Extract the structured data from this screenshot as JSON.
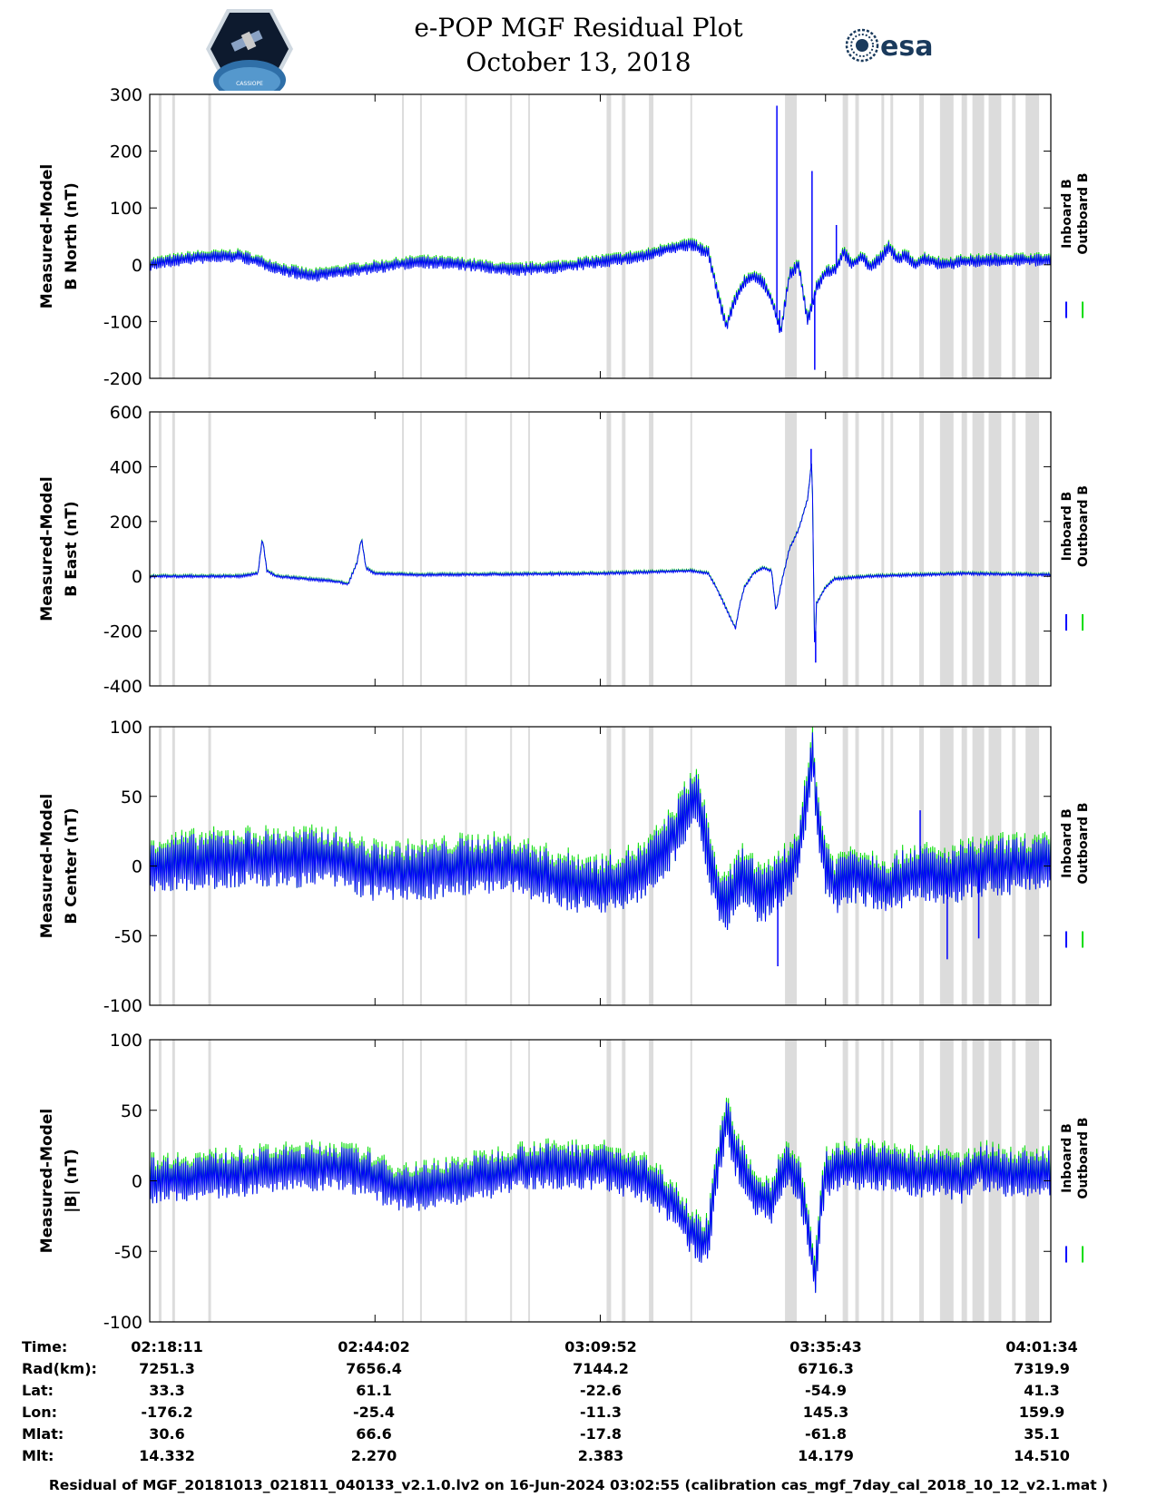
{
  "header": {
    "title_line1": "e-POP MGF Residual Plot",
    "title_line2": "October 13, 2018",
    "logo_left_text": "CASSIOPE",
    "logo_right_text": "esa"
  },
  "legend": {
    "inboard": "Inboard B",
    "outboard": "Outboard B"
  },
  "colors": {
    "inboard": "#0000ff",
    "outboard": "#00dd00",
    "gap": "#dcdcdc"
  },
  "chart_data": [
    {
      "type": "line",
      "ylabel": "Measured-Model",
      "ylabel2": "B North (nT)",
      "ylim": [
        -200,
        300
      ],
      "yticks": [
        "300",
        "200",
        "100",
        "0",
        "-100",
        "-200"
      ],
      "series": [
        {
          "name": "Inboard B"
        },
        {
          "name": "Outboard B"
        }
      ],
      "profile": [
        [
          0,
          0
        ],
        [
          2,
          5
        ],
        [
          5,
          12
        ],
        [
          10,
          15
        ],
        [
          15,
          -10
        ],
        [
          18,
          -20
        ],
        [
          20,
          -15
        ],
        [
          25,
          -5
        ],
        [
          30,
          5
        ],
        [
          35,
          0
        ],
        [
          40,
          -10
        ],
        [
          45,
          -5
        ],
        [
          50,
          5
        ],
        [
          55,
          15
        ],
        [
          58,
          30
        ],
        [
          60,
          35
        ],
        [
          62,
          20
        ],
        [
          63,
          -50
        ],
        [
          64,
          -110
        ],
        [
          65,
          -60
        ],
        [
          66,
          -30
        ],
        [
          67,
          -20
        ],
        [
          68,
          -30
        ],
        [
          69,
          -60
        ],
        [
          70,
          -120
        ],
        [
          71,
          -20
        ],
        [
          72,
          0
        ],
        [
          73,
          -100
        ],
        [
          74,
          -40
        ],
        [
          75,
          -15
        ],
        [
          76,
          -10
        ],
        [
          77,
          20
        ],
        [
          78,
          0
        ],
        [
          79,
          15
        ],
        [
          80,
          -5
        ],
        [
          81,
          10
        ],
        [
          82,
          30
        ],
        [
          83,
          10
        ],
        [
          84,
          15
        ],
        [
          85,
          0
        ],
        [
          86,
          10
        ],
        [
          87,
          5
        ],
        [
          88,
          0
        ],
        [
          90,
          5
        ],
        [
          95,
          8
        ],
        [
          100,
          8
        ]
      ],
      "noise": 8,
      "spikes": [
        {
          "x": 69.6,
          "y": 280
        },
        {
          "x": 69.9,
          "y": -80
        },
        {
          "x": 73.5,
          "y": 165
        },
        {
          "x": 73.8,
          "y": -185
        },
        {
          "x": 76.2,
          "y": 70
        }
      ]
    },
    {
      "type": "line",
      "ylabel": "Measured-Model",
      "ylabel2": "B East (nT)",
      "ylim": [
        -400,
        600
      ],
      "yticks": [
        "600",
        "400",
        "200",
        "0",
        "-200",
        "-400"
      ],
      "series": [
        {
          "name": "Inboard B"
        },
        {
          "name": "Outboard B"
        }
      ],
      "profile": [
        [
          0,
          0
        ],
        [
          10,
          0
        ],
        [
          12,
          10
        ],
        [
          12.5,
          140
        ],
        [
          13,
          20
        ],
        [
          14,
          0
        ],
        [
          21,
          -20
        ],
        [
          22,
          -30
        ],
        [
          23,
          50
        ],
        [
          23.5,
          140
        ],
        [
          24,
          30
        ],
        [
          25,
          10
        ],
        [
          30,
          5
        ],
        [
          50,
          10
        ],
        [
          60,
          20
        ],
        [
          62,
          10
        ],
        [
          63,
          -50
        ],
        [
          64,
          -120
        ],
        [
          65,
          -190
        ],
        [
          65.5,
          -100
        ],
        [
          66,
          -40
        ],
        [
          67,
          10
        ],
        [
          68,
          30
        ],
        [
          69,
          20
        ],
        [
          69.5,
          -130
        ],
        [
          70,
          -40
        ],
        [
          71,
          100
        ],
        [
          72,
          170
        ],
        [
          73,
          280
        ],
        [
          73.5,
          430
        ],
        [
          73.8,
          -300
        ],
        [
          74,
          -100
        ],
        [
          75,
          -40
        ],
        [
          76,
          -10
        ],
        [
          80,
          0
        ],
        [
          90,
          10
        ],
        [
          100,
          5
        ]
      ],
      "noise": 4,
      "spikes": [
        {
          "x": 73.4,
          "y": 465
        },
        {
          "x": 73.9,
          "y": -315
        }
      ]
    },
    {
      "type": "line",
      "ylabel": "Measured-Model",
      "ylabel2": "B Center (nT)",
      "ylim": [
        -100,
        100
      ],
      "yticks": [
        "100",
        "50",
        "0",
        "-50",
        "-100"
      ],
      "series": [
        {
          "name": "Inboard B"
        },
        {
          "name": "Outboard B"
        }
      ],
      "profile": [
        [
          0,
          0
        ],
        [
          10,
          5
        ],
        [
          20,
          5
        ],
        [
          25,
          -5
        ],
        [
          30,
          -5
        ],
        [
          35,
          0
        ],
        [
          40,
          0
        ],
        [
          45,
          -10
        ],
        [
          50,
          -15
        ],
        [
          55,
          -5
        ],
        [
          58,
          20
        ],
        [
          60,
          45
        ],
        [
          61,
          45
        ],
        [
          62,
          10
        ],
        [
          63,
          -20
        ],
        [
          64,
          -30
        ],
        [
          65,
          -15
        ],
        [
          66,
          -5
        ],
        [
          67,
          -15
        ],
        [
          68,
          -25
        ],
        [
          69,
          -15
        ],
        [
          70,
          -10
        ],
        [
          71,
          -5
        ],
        [
          72,
          10
        ],
        [
          73,
          50
        ],
        [
          73.6,
          80
        ],
        [
          74.2,
          30
        ],
        [
          75,
          0
        ],
        [
          76,
          -15
        ],
        [
          78,
          -5
        ],
        [
          80,
          -10
        ],
        [
          82,
          -15
        ],
        [
          85,
          -5
        ],
        [
          88,
          -10
        ],
        [
          90,
          -5
        ],
        [
          95,
          0
        ],
        [
          100,
          0
        ]
      ],
      "noise": 15,
      "spikes": [
        {
          "x": 69.7,
          "y": -72
        },
        {
          "x": 88.5,
          "y": -67
        },
        {
          "x": 85.5,
          "y": 40
        },
        {
          "x": 92,
          "y": -52
        }
      ]
    },
    {
      "type": "line",
      "ylabel": "Measured-Model",
      "ylabel2": "|B| (nT)",
      "ylim": [
        -100,
        100
      ],
      "yticks": [
        "100",
        "50",
        "0",
        "-50",
        "-100"
      ],
      "series": [
        {
          "name": "Inboard B"
        },
        {
          "name": "Outboard B"
        }
      ],
      "profile": [
        [
          0,
          0
        ],
        [
          10,
          5
        ],
        [
          20,
          10
        ],
        [
          24,
          5
        ],
        [
          27,
          -5
        ],
        [
          30,
          -5
        ],
        [
          35,
          0
        ],
        [
          42,
          10
        ],
        [
          50,
          10
        ],
        [
          55,
          0
        ],
        [
          58,
          -15
        ],
        [
          60,
          -35
        ],
        [
          61.5,
          -45
        ],
        [
          62,
          -40
        ],
        [
          63,
          10
        ],
        [
          64,
          45
        ],
        [
          65,
          20
        ],
        [
          66,
          5
        ],
        [
          67,
          -10
        ],
        [
          69,
          -15
        ],
        [
          70,
          5
        ],
        [
          71,
          10
        ],
        [
          72,
          0
        ],
        [
          73,
          -30
        ],
        [
          73.8,
          -70
        ],
        [
          74.5,
          -20
        ],
        [
          75,
          5
        ],
        [
          77,
          10
        ],
        [
          80,
          10
        ],
        [
          85,
          5
        ],
        [
          88,
          5
        ],
        [
          90,
          0
        ],
        [
          92,
          10
        ],
        [
          95,
          5
        ],
        [
          100,
          5
        ]
      ],
      "noise": 12,
      "spikes": []
    }
  ],
  "gap_bands_pct": [
    [
      1,
      1.3
    ],
    [
      2.5,
      2.8
    ],
    [
      6.5,
      6.8
    ],
    [
      28,
      28.2
    ],
    [
      30,
      30.2
    ],
    [
      35,
      35.2
    ],
    [
      40,
      40.2
    ],
    [
      42,
      42.2
    ],
    [
      50.7,
      51.2
    ],
    [
      52.4,
      52.8
    ],
    [
      55.4,
      55.9
    ],
    [
      60,
      60.2
    ],
    [
      70.5,
      71.8
    ],
    [
      76.9,
      77.5
    ],
    [
      78.3,
      78.7
    ],
    [
      81.2,
      81.5
    ],
    [
      82.2,
      82.5
    ],
    [
      85.4,
      85.9
    ],
    [
      87.7,
      89.2
    ],
    [
      90.1,
      90.7
    ],
    [
      91.3,
      92.6
    ],
    [
      93.1,
      94.5
    ],
    [
      95.7,
      96.1
    ],
    [
      97.2,
      98.7
    ]
  ],
  "time_axis": {
    "headers": [
      "Time:",
      "Rad(km):",
      "Lat:",
      "Lon:",
      "Mlat:",
      "Mlt:"
    ],
    "columns": [
      {
        "time": "02:18:11",
        "rad": "7251.3",
        "lat": "33.3",
        "lon": "-176.2",
        "mlat": "30.6",
        "mlt": "14.332"
      },
      {
        "time": "02:44:02",
        "rad": "7656.4",
        "lat": "61.1",
        "lon": "-25.4",
        "mlat": "66.6",
        "mlt": "2.270"
      },
      {
        "time": "03:09:52",
        "rad": "7144.2",
        "lat": "-22.6",
        "lon": "-11.3",
        "mlat": "-17.8",
        "mlt": "2.383"
      },
      {
        "time": "03:35:43",
        "rad": "6716.3",
        "lat": "-54.9",
        "lon": "145.3",
        "mlat": "-61.8",
        "mlt": "14.179"
      },
      {
        "time": "04:01:34",
        "rad": "7319.9",
        "lat": "41.3",
        "lon": "159.9",
        "mlat": "35.1",
        "mlt": "14.510"
      }
    ]
  },
  "footer": "Residual of MGF_20181013_021811_040133_v2.1.0.lv2 on 16-Jun-2024 03:02:55 (calibration cas_mgf_7day_cal_2018_10_12_v2.1.mat )"
}
